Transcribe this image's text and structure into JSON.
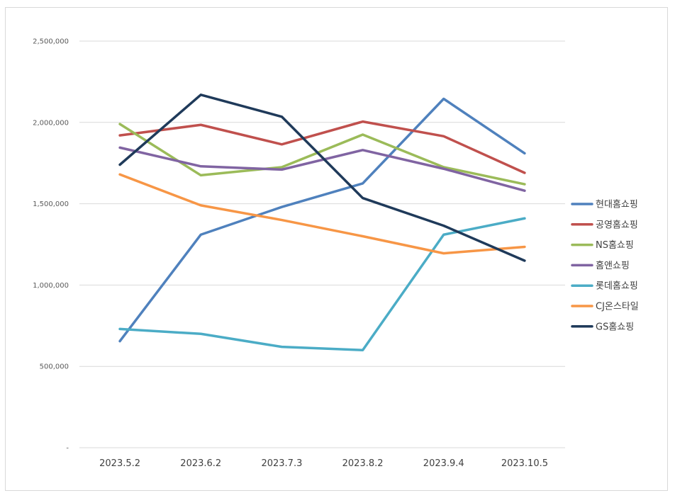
{
  "chart_data": {
    "type": "line",
    "categories": [
      "2023.5.2",
      "2023.6.2",
      "2023.7.3",
      "2023.8.2",
      "2023.9.4",
      "2023.10.5"
    ],
    "ylim": [
      0,
      2500000
    ],
    "y_ticks": [
      0,
      500000,
      1000000,
      1500000,
      2000000,
      2500000
    ],
    "y_tick_labels": [
      "-",
      "500,000",
      "1,000,000",
      "1,500,000",
      "2,000,000",
      "2,500,000"
    ],
    "grid": true,
    "legend_position": "right",
    "series": [
      {
        "name": "현대홈쇼핑",
        "color": "#4f81bd",
        "values": [
          655000,
          1310000,
          1480000,
          1625000,
          2145000,
          1810000
        ]
      },
      {
        "name": "공영홈쇼핑",
        "color": "#c0504d",
        "values": [
          1920000,
          1985000,
          1865000,
          2005000,
          1915000,
          1690000
        ]
      },
      {
        "name": "NS홈쇼핑",
        "color": "#9bbb59",
        "values": [
          1990000,
          1675000,
          1725000,
          1925000,
          1725000,
          1620000
        ]
      },
      {
        "name": "홈앤쇼핑",
        "color": "#8064a2",
        "values": [
          1845000,
          1730000,
          1710000,
          1830000,
          1715000,
          1580000
        ]
      },
      {
        "name": "롯데홈쇼핑",
        "color": "#4bacc6",
        "values": [
          730000,
          700000,
          620000,
          600000,
          1310000,
          1410000
        ]
      },
      {
        "name": "CJ온스타일",
        "color": "#f79646",
        "values": [
          1680000,
          1490000,
          1400000,
          1300000,
          1195000,
          1235000
        ]
      },
      {
        "name": "GS홈쇼핑",
        "color": "#1f3a5a",
        "values": [
          1740000,
          2170000,
          2035000,
          1535000,
          1365000,
          1150000
        ]
      }
    ]
  }
}
